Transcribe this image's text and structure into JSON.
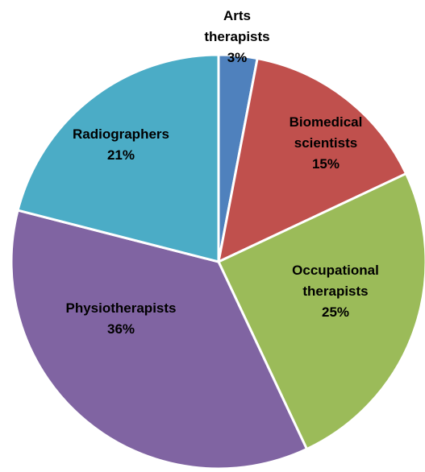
{
  "chart_data": {
    "type": "pie",
    "categories": [
      "Arts therapists",
      "Biomedical scientists",
      "Occupational therapists",
      "Physiotherapists",
      "Radiographers"
    ],
    "values": [
      3,
      15,
      25,
      36,
      21
    ],
    "value_labels": [
      "3%",
      "15%",
      "25%",
      "36%",
      "21%"
    ],
    "colors": [
      "#4f81bd",
      "#c0504d",
      "#9bbb59",
      "#8064a2",
      "#4bacc6"
    ]
  }
}
